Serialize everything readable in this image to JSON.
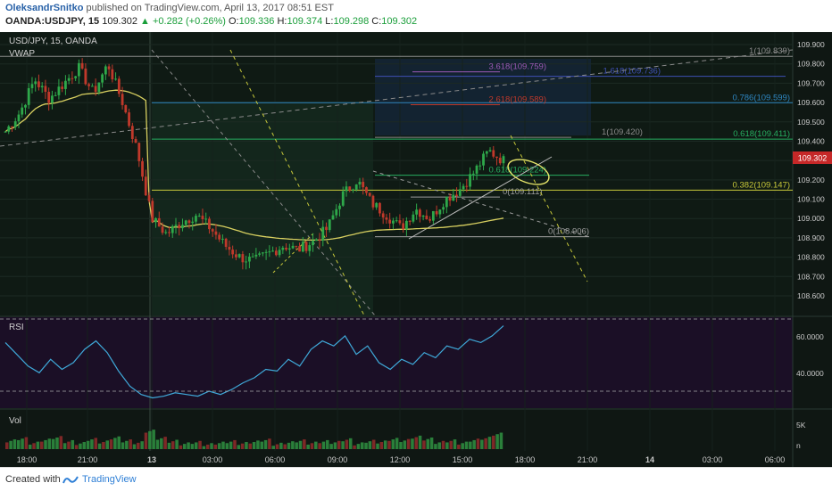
{
  "header": {
    "author": "OleksandrSnitko",
    "published": "published on TradingView.com, April 13, 2017 08:51 EST",
    "symbol": "OANDA:USDJPY, 15",
    "last": "109.302",
    "change_arrow": "▲",
    "change": "+0.282 (+0.26%)",
    "o_label": "O:",
    "o_value": "109.336",
    "h_label": "H:",
    "h_value": "109.374",
    "l_label": "L:",
    "l_value": "109.298",
    "c_label": "C:",
    "c_value": "109.302"
  },
  "footer": {
    "created": "Created with",
    "brand": "TradingView"
  },
  "chart_data": [
    {
      "type": "candlestick",
      "title": "USD/JPY, 15, OANDA",
      "indicator": "VWAP",
      "ylim": [
        108.5,
        109.9
      ],
      "y_ticks": [
        "109.900",
        "109.800",
        "109.700",
        "109.600",
        "109.500",
        "109.400",
        "109.300",
        "109.200",
        "109.100",
        "109.000",
        "108.900",
        "108.800",
        "108.700",
        "108.600"
      ],
      "x_ticks": [
        "18:00",
        "21:00",
        "13",
        "03:00",
        "06:00",
        "09:00",
        "12:00",
        "15:00",
        "18:00",
        "21:00",
        "14",
        "03:00",
        "06:00"
      ],
      "price_tag": "109.302",
      "approx_close_path": [
        109.45,
        109.55,
        109.72,
        109.62,
        109.7,
        109.78,
        109.65,
        109.8,
        109.6,
        109.35,
        109.0,
        108.92,
        108.98,
        109.02,
        108.95,
        108.86,
        108.8,
        108.78,
        108.82,
        108.86,
        108.84,
        108.88,
        108.95,
        109.12,
        109.2,
        109.08,
        109.02,
        108.95,
        109.05,
        109.0,
        109.1,
        109.15,
        109.24,
        109.35,
        109.3
      ],
      "fib_levels_upper": [
        {
          "label": "1(109.839)",
          "value": 109.839
        },
        {
          "label": "3.618(109.759)",
          "value": 109.759
        },
        {
          "label": "1.618(109.736)",
          "value": 109.736
        },
        {
          "label": "0.786(109.599)",
          "value": 109.599
        },
        {
          "label": "2.618(109.589)",
          "value": 109.589
        },
        {
          "label": "1(109.420)",
          "value": 109.42
        },
        {
          "label": "0.618(109.411)",
          "value": 109.411
        }
      ],
      "fib_levels_lower": [
        {
          "label": "0.618(109.224)",
          "value": 109.224
        },
        {
          "label": "0.382(109.147)",
          "value": 109.147
        },
        {
          "label": "0(109.111)",
          "value": 109.111
        },
        {
          "label": "0(108.906)",
          "value": 108.906
        }
      ]
    },
    {
      "type": "line",
      "title": "RSI",
      "y_ticks": [
        "60.0000",
        "40.0000"
      ],
      "values": [
        62,
        55,
        48,
        44,
        52,
        46,
        50,
        58,
        63,
        56,
        45,
        36,
        31,
        29,
        30,
        32,
        31,
        30,
        33,
        31,
        34,
        38,
        41,
        46,
        45,
        52,
        48,
        58,
        63,
        60,
        66,
        55,
        60,
        50,
        46,
        52,
        49,
        56,
        53,
        60,
        58,
        64,
        62,
        66,
        72
      ]
    },
    {
      "type": "bar",
      "title": "Vol",
      "y_ticks": [
        "5K",
        "n"
      ],
      "values": [
        2.2,
        2.8,
        1.6,
        2.4,
        3.1,
        2.0,
        1.5,
        2.6,
        1.9,
        3.0,
        2.2,
        1.7,
        4.8,
        2.9,
        2.1,
        1.4,
        1.8,
        1.2,
        1.6,
        2.0,
        1.5,
        1.9,
        2.4,
        1.3,
        1.7,
        2.2,
        1.6,
        2.0,
        1.8,
        2.5,
        1.4,
        2.1,
        1.9,
        2.6,
        2.3,
        3.2,
        2.7,
        1.8,
        2.2,
        1.6,
        2.4,
        2.9,
        4.0
      ]
    }
  ]
}
